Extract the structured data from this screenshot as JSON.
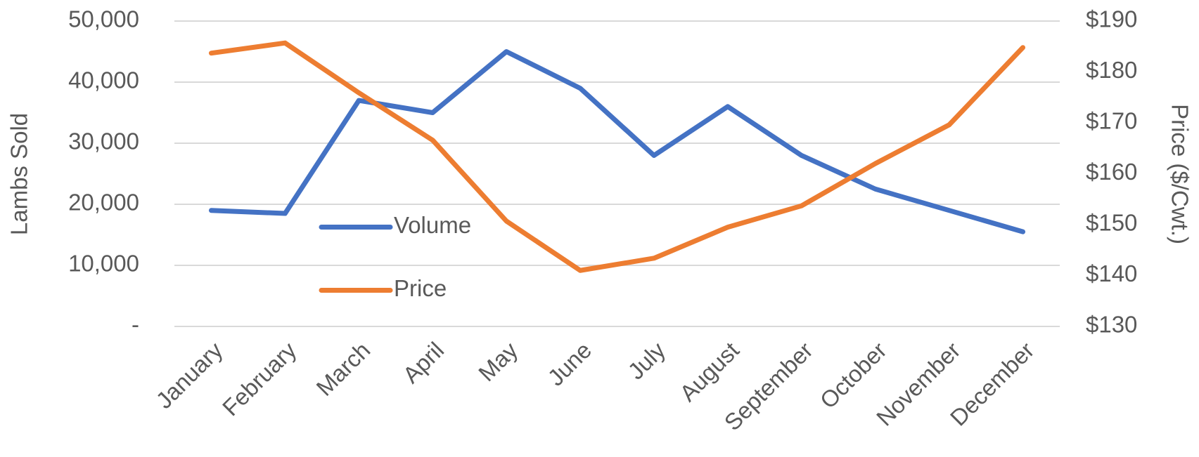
{
  "chart_data": {
    "type": "line",
    "categories": [
      "January",
      "February",
      "March",
      "April",
      "May",
      "June",
      "July",
      "August",
      "September",
      "October",
      "November",
      "December"
    ],
    "series": [
      {
        "name": "Volume",
        "color": "#4472c4",
        "axis": "y",
        "values": [
          19000,
          18500,
          37000,
          35000,
          45000,
          39000,
          28000,
          36000,
          28000,
          22500,
          19000,
          15500
        ]
      },
      {
        "name": "Price",
        "color": "#ed7d31",
        "axis": "y2",
        "values": [
          183.7,
          185.7,
          175.9,
          166.6,
          150.7,
          141,
          143.4,
          149.5,
          153.7,
          162,
          169.6,
          184.8
        ]
      }
    ],
    "ylabel": "Lambs Sold",
    "y2label": "Price ($/Cwt.)",
    "ylim": [
      0,
      50000
    ],
    "yticks": [
      {
        "value": 0,
        "label": "-"
      },
      {
        "value": 10000,
        "label": "10,000"
      },
      {
        "value": 20000,
        "label": "20,000"
      },
      {
        "value": 30000,
        "label": "30,000"
      },
      {
        "value": 40000,
        "label": "40,000"
      },
      {
        "value": 50000,
        "label": "50,000"
      }
    ],
    "y2lim": [
      130,
      190
    ],
    "y2ticks": [
      {
        "value": 130,
        "label": "$130"
      },
      {
        "value": 140,
        "label": "$140"
      },
      {
        "value": 150,
        "label": "$150"
      },
      {
        "value": 160,
        "label": "$160"
      },
      {
        "value": 170,
        "label": "$170"
      },
      {
        "value": 180,
        "label": "$180"
      },
      {
        "value": 190,
        "label": "$190"
      }
    ],
    "grid": true,
    "legend": "left"
  }
}
